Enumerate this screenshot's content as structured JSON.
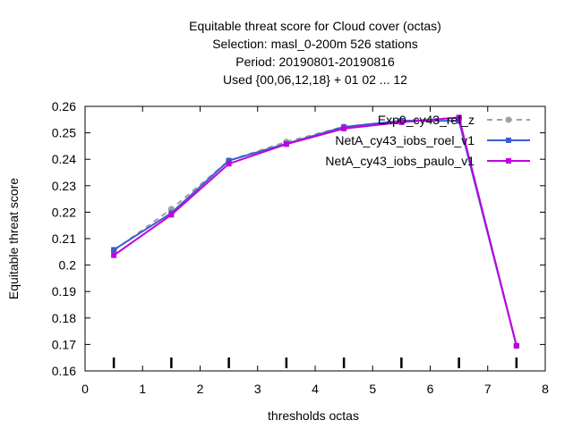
{
  "chart_data": {
    "type": "line",
    "title_lines": [
      "Equitable threat score  for Cloud cover (octas)",
      "Selection: masl_0-200m    526 stations",
      "Period: 20190801-20190816",
      "Used {00,06,12,18} + 01 02 ... 12"
    ],
    "xlabel": "thresholds octas",
    "ylabel": "Equitable threat score",
    "xlim": [
      0,
      8
    ],
    "ylim": [
      0.16,
      0.26
    ],
    "x_ticks": [
      "0",
      "1",
      "2",
      "3",
      "4",
      "5",
      "6",
      "7",
      "8"
    ],
    "y_ticks": [
      "0.16",
      "0.17",
      "0.18",
      "0.19",
      "0.2",
      "0.21",
      "0.22",
      "0.23",
      "0.24",
      "0.25",
      "0.26"
    ],
    "grid": false,
    "legend_position": "top-right",
    "x": [
      0.5,
      1.5,
      2.5,
      3.5,
      4.5,
      5.5,
      6.5,
      7.5
    ],
    "series": [
      {
        "name": "Exp0_cy43_ref_z",
        "color": "#a0a0a0",
        "dash": true,
        "marker": "circle",
        "values": [
          0.2055,
          0.2212,
          0.2395,
          0.2466,
          0.2523,
          0.2545,
          0.2557,
          0.1695
        ]
      },
      {
        "name": "NetA_cy43_iobs_roel_v1",
        "color": "#3a5fcd",
        "dash": false,
        "marker": "square",
        "values": [
          0.2058,
          0.2197,
          0.2395,
          0.2459,
          0.2522,
          0.2546,
          0.2545,
          0.1695
        ]
      },
      {
        "name": "NetA_cy43_iobs_paulo_v1",
        "color": "#c000e0",
        "dash": false,
        "marker": "square",
        "values": [
          0.2037,
          0.219,
          0.2383,
          0.2457,
          0.2516,
          0.254,
          0.2558,
          0.1695
        ]
      }
    ]
  }
}
